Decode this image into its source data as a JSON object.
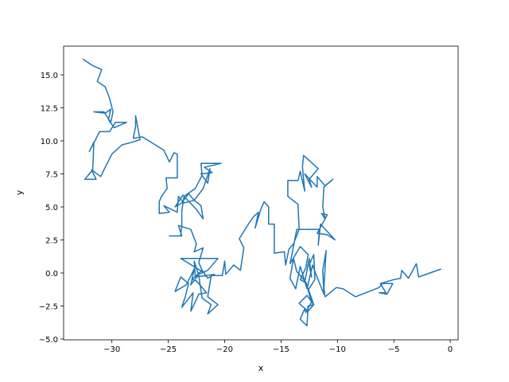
{
  "chart_data": {
    "type": "line",
    "x_label": "x",
    "y_label": "y",
    "xlim": [
      -34.28,
      0.7
    ],
    "ylim": [
      -5.06,
      17.17
    ],
    "xticks": [
      {
        "value": -30,
        "label": "−30"
      },
      {
        "value": -25,
        "label": "−25"
      },
      {
        "value": -20,
        "label": "−20"
      },
      {
        "value": -15,
        "label": "−15"
      },
      {
        "value": -10,
        "label": "−10"
      },
      {
        "value": -5,
        "label": "−5"
      },
      0
    ],
    "yticks": [
      {
        "value": -5,
        "label": "−5.0"
      },
      {
        "value": -2.5,
        "label": "−2.5"
      },
      {
        "value": 0,
        "label": "0.0"
      },
      2.5,
      {
        "value": 5,
        "label": "5.0"
      },
      7.5,
      {
        "value": 10,
        "label": "10.0"
      },
      12.5,
      {
        "value": 15,
        "label": "15.0"
      }
    ],
    "series": [
      {
        "color": "#1f77b4",
        "x": [
          -32.6,
          -31.7,
          -30.9,
          -31.3,
          -30.6,
          -30.2,
          -29.9,
          -30.0,
          -30.1,
          -30.7,
          -31.6,
          -30.6,
          -30.1,
          -30.3,
          -29.8,
          -28.7,
          -29.7,
          -30.2,
          -31.1,
          -31.5,
          -32.0,
          -31.6,
          -31.7,
          -32.4,
          -31.4,
          -31.8,
          -31.0,
          -30.0,
          -29.1,
          -28.2,
          -27.5,
          -27.9,
          -27.9,
          -28.1,
          -27.3,
          -25.4,
          -24.9,
          -24.5,
          -24.2,
          -24.2,
          -25.2,
          -25.1,
          -25.6,
          -25.8,
          -25.8,
          -24.9,
          -25.4,
          -24.2,
          -24.1,
          -23.6,
          -22.7,
          -23.2,
          -23.8,
          -24.4,
          -23.7,
          -22.5,
          -21.9,
          -22.1,
          -22.7,
          -21.9,
          -21.3,
          -21.5,
          -22.1,
          -21.1,
          -21.8,
          -20.3,
          -22.1,
          -22.0,
          -22.6,
          -23.6,
          -23.8,
          -23.8,
          -23.9,
          -24.9,
          -23.8,
          -24.1,
          -23.0,
          -22.5,
          -22.7,
          -21.9,
          -22.3,
          -22.0,
          -21.8,
          -23.9,
          -20.6,
          -21.5,
          -22.3,
          -23.0,
          -22.7,
          -23.4,
          -24.4,
          -23.9,
          -23.2,
          -23.5,
          -23.8,
          -22.8,
          -23.0,
          -22.5,
          -22.3,
          -21.6,
          -22.5,
          -22.9,
          -22.0,
          -21.5,
          -20.9,
          -22.6,
          -22.7,
          -22.3,
          -22.0,
          -21.2,
          -21.5,
          -20.6,
          -21.5,
          -21.2,
          -20.2,
          -20.0,
          -19.9,
          -19.2,
          -18.6,
          -18.3,
          -18.7,
          -17.9,
          -17.4,
          -17.0,
          -17.3,
          -16.8,
          -16.5,
          -16.1,
          -16.1,
          -15.6,
          -15.6,
          -14.7,
          -14.6,
          -14.3,
          -13.9,
          -13.4,
          -13.5,
          -14.4,
          -14.4,
          -13.5,
          -13.3,
          -12.9,
          -13.1,
          -13.0,
          -11.7,
          -12.5,
          -12.3,
          -12.9,
          -11.8,
          -11.8,
          -11.1,
          -10.4,
          -11.2,
          -11.3,
          -11.1,
          -11.4,
          -10.9,
          -11.8,
          -10.9,
          -10.2,
          -11.5,
          -11.7,
          -11.6,
          -13.6,
          -14.2,
          -13.3,
          -12.6,
          -12.8,
          -13.3,
          -12.9,
          -12.5,
          -12.3,
          -12.5,
          -12.1,
          -12.0,
          -12.6,
          -12.3,
          -12.8,
          -12.9,
          -13.3,
          -12.7,
          -12.6,
          -12.1,
          -12.7,
          -13.4,
          -12.6,
          -12.1,
          -12.8,
          -13.6,
          -13.9,
          -14.2,
          -13.7,
          -13.3,
          -12.7,
          -12.2,
          -11.9,
          -11.2,
          -11.3,
          -11.0,
          -11.2,
          -11.1,
          -10.1,
          -9.5,
          -8.4,
          -6.3,
          -6.0,
          -5.1,
          -5.6,
          -6.3,
          -5.7,
          -6.2,
          -5.0,
          -4.4,
          -4.3,
          -3.7,
          -3.0,
          -2.8,
          -0.8
        ],
        "values": [
          16.2,
          15.7,
          15.4,
          14.5,
          14.1,
          13.2,
          12.2,
          11.8,
          11.4,
          12.2,
          12.2,
          12.1,
          12.4,
          11.6,
          11.0,
          11.4,
          11.4,
          10.7,
          10.7,
          10.0,
          9.2,
          9.9,
          7.8,
          7.1,
          7.1,
          7.8,
          7.3,
          9.0,
          9.7,
          9.9,
          10.1,
          11.9,
          11.1,
          10.2,
          10.3,
          9.3,
          8.4,
          9.1,
          9.0,
          7.2,
          7.2,
          6.4,
          5.8,
          5.4,
          4.5,
          4.6,
          5.1,
          4.6,
          5.8,
          5.3,
          5.5,
          6.0,
          5.3,
          5.0,
          5.9,
          4.8,
          4.1,
          5.1,
          5.5,
          6.4,
          7.9,
          6.8,
          7.5,
          7.6,
          8.0,
          8.3,
          8.3,
          7.4,
          6.4,
          5.8,
          4.7,
          3.7,
          2.8,
          2.8,
          2.8,
          3.6,
          3.3,
          2.2,
          1.6,
          1.9,
          0.8,
          0.2,
          0.0,
          1.1,
          1.1,
          0.2,
          -0.1,
          -0.9,
          0.3,
          -0.9,
          -1.4,
          -0.3,
          -0.8,
          -1.8,
          -2.6,
          -1.5,
          -2.9,
          -2.0,
          -1.6,
          -1.5,
          -0.6,
          -0.5,
          0.2,
          -0.4,
          -0.1,
          -0.3,
          0.9,
          -0.2,
          -1.9,
          -2.4,
          -3.1,
          -2.4,
          -1.8,
          -0.2,
          -0.2,
          0.9,
          -0.1,
          0.6,
          0.2,
          1.9,
          2.6,
          3.7,
          4.3,
          4.6,
          3.4,
          4.8,
          5.4,
          5.0,
          3.7,
          3.7,
          1.5,
          1.6,
          0.6,
          1.8,
          2.2,
          3.3,
          5.2,
          5.8,
          7.0,
          7.0,
          7.7,
          6.2,
          8.0,
          8.9,
          7.9,
          7.1,
          6.5,
          7.5,
          6.5,
          7.3,
          6.6,
          7.1,
          6.5,
          5.0,
          4.1,
          4.5,
          4.4,
          3.0,
          2.9,
          2.5,
          3.7,
          2.1,
          3.3,
          3.3,
          0.7,
          2.0,
          1.4,
          0.4,
          -0.5,
          -0.7,
          1.1,
          -0.3,
          0.6,
          1.4,
          -0.5,
          -1.3,
          -2.2,
          -3.0,
          -2.7,
          -3.5,
          -4.0,
          -2.5,
          -2.4,
          -1.7,
          -2.3,
          -2.9,
          -2.4,
          -0.7,
          0.1,
          1.1,
          -0.4,
          -1.2,
          0.5,
          -1.2,
          0.6,
          -0.1,
          -1.6,
          0.2,
          1.7,
          -1.1,
          -1.8,
          -1.1,
          -1.2,
          -1.8,
          -1.1,
          -0.8,
          -0.8,
          -1.6,
          -1.5,
          -1.5,
          -0.8,
          -0.5,
          -0.4,
          0.2,
          -0.4,
          0.7,
          -0.3,
          0.3
        ]
      }
    ]
  }
}
